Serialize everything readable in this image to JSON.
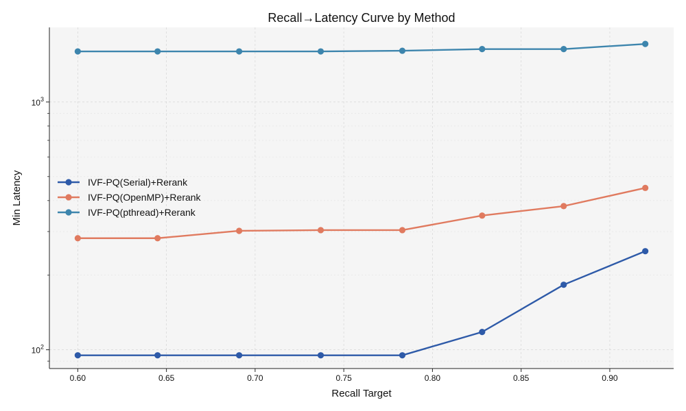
{
  "chart_data": {
    "type": "line",
    "title": "Recall→Latency Curve by Method",
    "xlabel": "Recall Target",
    "ylabel": "Min Latency",
    "x": [
      0.6,
      0.645,
      0.691,
      0.737,
      0.783,
      0.828,
      0.874,
      0.92
    ],
    "xlim": [
      0.584,
      0.936
    ],
    "xticks": [
      0.6,
      0.65,
      0.7,
      0.75,
      0.8,
      0.85,
      0.9
    ],
    "xtick_labels": [
      "0.60",
      "0.65",
      "0.70",
      "0.75",
      "0.80",
      "0.85",
      "0.90"
    ],
    "yscale": "log",
    "ylim": [
      84,
      2000
    ],
    "yticks_major": [
      100,
      1000
    ],
    "ytick_labels": [
      "10",
      "10"
    ],
    "ytick_exponents": [
      "2",
      "3"
    ],
    "grid": true,
    "legend_position": "center-left",
    "series": [
      {
        "name": "IVF-PQ(Serial)+Rerank",
        "color": "#2e5aa8",
        "values": [
          95,
          95,
          95,
          95,
          95,
          118,
          183,
          250
        ]
      },
      {
        "name": "IVF-PQ(OpenMP)+Rerank",
        "color": "#e07a5f",
        "values": [
          282,
          282,
          302,
          304,
          304,
          348,
          380,
          450
        ]
      },
      {
        "name": "IVF-PQ(pthread)+Rerank",
        "color": "#3d85ad",
        "values": [
          1600,
          1600,
          1600,
          1600,
          1610,
          1635,
          1635,
          1715
        ]
      }
    ]
  }
}
